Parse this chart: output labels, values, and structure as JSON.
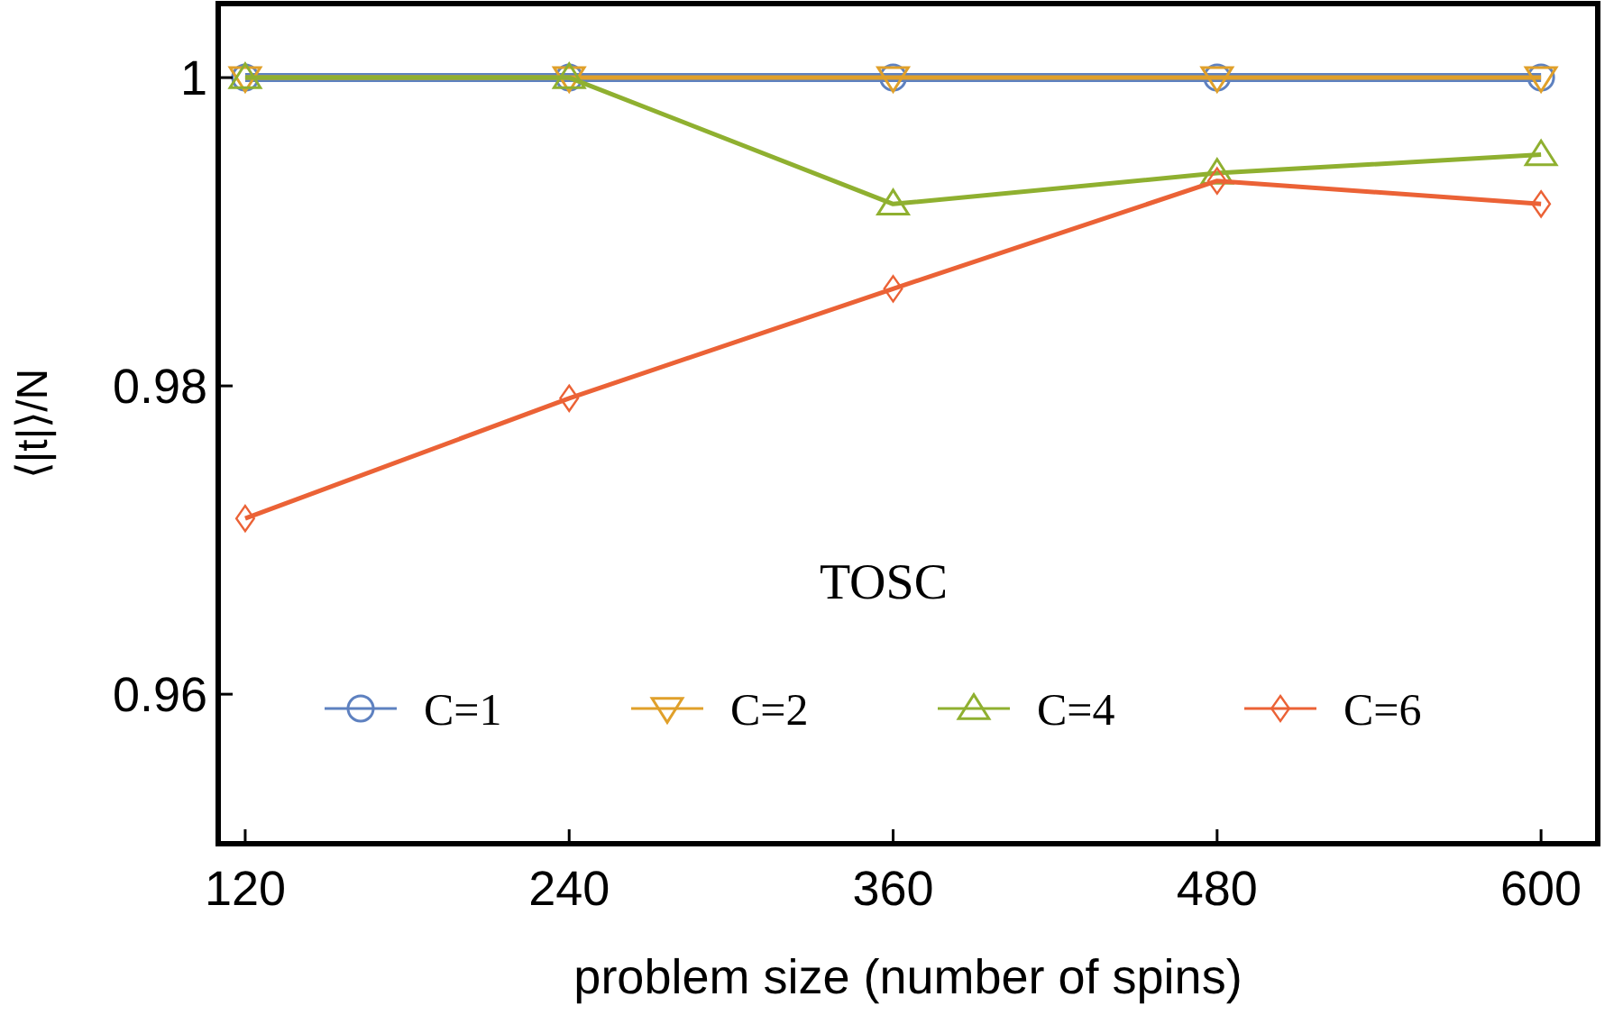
{
  "chart_data": {
    "type": "line",
    "xlabel": "problem size (number of spins)",
    "ylabel": "⟨|t|⟩/N",
    "x": [
      120,
      240,
      360,
      480,
      600
    ],
    "series": [
      {
        "name": "C=1",
        "color": "#5e81c0",
        "marker": "circle",
        "values": [
          1,
          1,
          1,
          1,
          1
        ]
      },
      {
        "name": "C=2",
        "color": "#e0a02a",
        "marker": "triangle-down",
        "values": [
          1,
          1,
          1,
          1,
          1
        ]
      },
      {
        "name": "C=4",
        "color": "#8fb030",
        "marker": "triangle",
        "values": [
          1,
          1,
          0.9918,
          0.9938,
          0.995
        ]
      },
      {
        "name": "C=6",
        "color": "#eb6236",
        "marker": "diamond",
        "values": [
          0.9714,
          0.9792,
          0.9863,
          0.9933,
          0.9918
        ]
      }
    ],
    "xlim": [
      110,
      621
    ],
    "xticks": [
      120,
      240,
      360,
      480,
      600
    ],
    "ylim": [
      0.9503,
      1.0048
    ],
    "yticks": [
      0.96,
      0.98,
      1
    ],
    "annotations": [
      "TOSC"
    ],
    "legend": "bottom",
    "grid": false,
    "line_style": "solid"
  }
}
